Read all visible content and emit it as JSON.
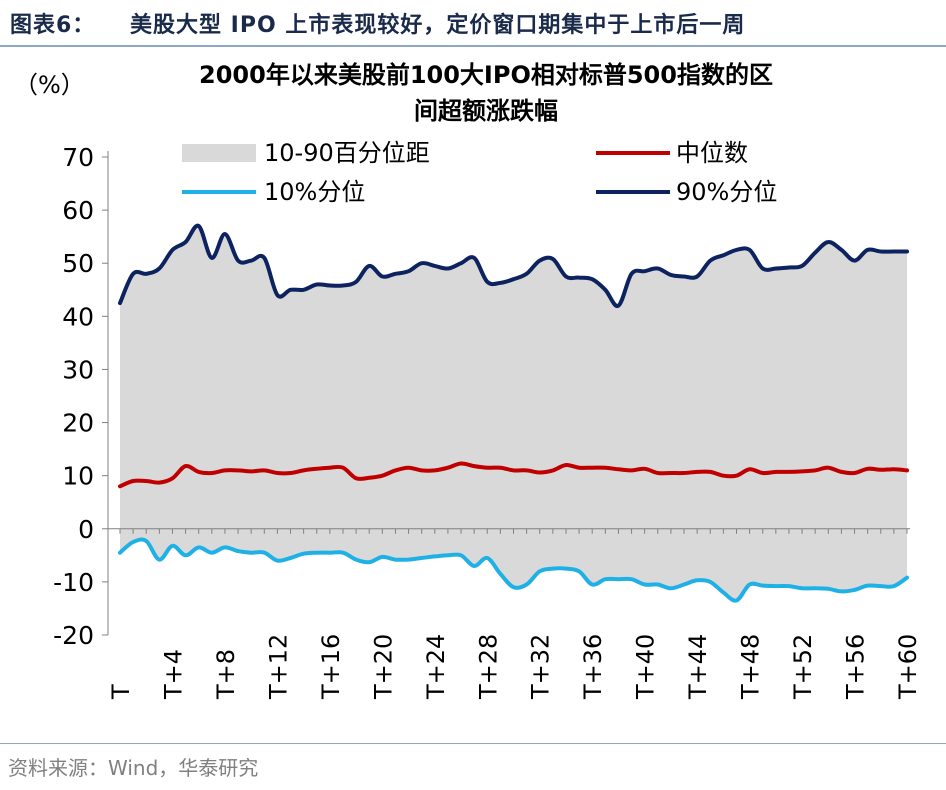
{
  "figure": {
    "label": "图表6：",
    "title": "美股大型 IPO 上市表现较好，定价窗口期集中于上市后一周",
    "source": "资料来源：Wind，华泰研究"
  },
  "colors": {
    "band": "#d9d9d9",
    "median": "#c00000",
    "p10": "#1fb1e6",
    "p90": "#0d2360",
    "header_text": "#1a2a4a",
    "rule": "#8ea7c4"
  },
  "chart_data": {
    "type": "line",
    "title_lines": [
      "2000年以来美股前100大IPO相对标普500指数的区",
      "间超额涨跌幅"
    ],
    "ylabel": "（%）",
    "ylim": [
      -20,
      70
    ],
    "yticks": [
      70,
      60,
      50,
      40,
      30,
      20,
      10,
      0,
      -10,
      -20
    ],
    "xlim": [
      0,
      60
    ],
    "xticks": [
      {
        "t": 0,
        "label": "T"
      },
      {
        "t": 4,
        "label": "T+4"
      },
      {
        "t": 8,
        "label": "T+8"
      },
      {
        "t": 12,
        "label": "T+12"
      },
      {
        "t": 16,
        "label": "T+16"
      },
      {
        "t": 20,
        "label": "T+20"
      },
      {
        "t": 24,
        "label": "T+24"
      },
      {
        "t": 28,
        "label": "T+28"
      },
      {
        "t": 32,
        "label": "T+32"
      },
      {
        "t": 36,
        "label": "T+36"
      },
      {
        "t": 40,
        "label": "T+40"
      },
      {
        "t": 44,
        "label": "T+44"
      },
      {
        "t": 48,
        "label": "T+48"
      },
      {
        "t": 52,
        "label": "T+52"
      },
      {
        "t": 56,
        "label": "T+56"
      },
      {
        "t": 60,
        "label": "T+60"
      }
    ],
    "legend": {
      "band": "10-90百分位距",
      "median": "中位数",
      "p10": "10%分位",
      "p90": "90%分位"
    },
    "x": [
      0,
      1,
      2,
      3,
      4,
      5,
      6,
      7,
      8,
      9,
      10,
      11,
      12,
      13,
      14,
      15,
      16,
      17,
      18,
      19,
      20,
      21,
      22,
      23,
      24,
      25,
      26,
      27,
      28,
      29,
      30,
      31,
      32,
      33,
      34,
      35,
      36,
      37,
      38,
      39,
      40,
      41,
      42,
      43,
      44,
      45,
      46,
      47,
      48,
      49,
      50,
      51,
      52,
      53,
      54,
      55,
      56,
      57,
      58,
      59,
      60
    ],
    "series": [
      {
        "key": "p90",
        "values": [
          42.5,
          48,
          48,
          49,
          52.5,
          54,
          57,
          51,
          55.5,
          50.5,
          50.5,
          51,
          44,
          45,
          45,
          46,
          45.8,
          45.8,
          46.5,
          49.5,
          47.5,
          48,
          48.5,
          50,
          49.5,
          49,
          50,
          51,
          46.5,
          46.3,
          47,
          48,
          50.5,
          50.8,
          47.5,
          47.3,
          47,
          45,
          42,
          48,
          48.5,
          49,
          47.8,
          47.5,
          47.5,
          50.5,
          51.5,
          52.5,
          52.5,
          49,
          49,
          49.2,
          49.5,
          52,
          54,
          52.5,
          50.5,
          52.5,
          52.2,
          52.2,
          52.2
        ]
      },
      {
        "key": "median",
        "values": [
          8,
          9,
          9,
          8.7,
          9.5,
          11.8,
          10.7,
          10.5,
          11,
          11,
          10.8,
          11,
          10.5,
          10.5,
          11,
          11.3,
          11.5,
          11.5,
          9.5,
          9.6,
          10,
          11,
          11.5,
          11,
          11,
          11.5,
          12.3,
          11.8,
          11.5,
          11.5,
          11,
          11,
          10.6,
          11,
          12,
          11.5,
          11.5,
          11.5,
          11.2,
          11,
          11.3,
          10.5,
          10.5,
          10.5,
          10.7,
          10.7,
          10,
          10,
          11.2,
          10.5,
          10.7,
          10.7,
          10.8,
          11,
          11.5,
          10.7,
          10.5,
          11.3,
          11.1,
          11.2,
          11
        ]
      },
      {
        "key": "p10",
        "values": [
          -4.5,
          -2.5,
          -2.3,
          -5.8,
          -3.2,
          -5,
          -3.5,
          -4.5,
          -3.5,
          -4.2,
          -4.5,
          -4.5,
          -6,
          -5.5,
          -4.7,
          -4.5,
          -4.5,
          -4.5,
          -5.8,
          -6.3,
          -5.3,
          -5.8,
          -5.8,
          -5.5,
          -5.2,
          -5,
          -5,
          -7,
          -5.5,
          -8.5,
          -11,
          -10.5,
          -8,
          -7.5,
          -7.5,
          -8,
          -10.5,
          -9.5,
          -9.5,
          -9.5,
          -10.5,
          -10.5,
          -11.2,
          -10.5,
          -9.7,
          -10,
          -12,
          -13.5,
          -10.5,
          -10.7,
          -10.8,
          -10.8,
          -11.2,
          -11.2,
          -11.3,
          -11.8,
          -11.5,
          -10.7,
          -10.8,
          -10.8,
          -9.2
        ]
      }
    ],
    "grid": false,
    "legend_position": "top"
  }
}
